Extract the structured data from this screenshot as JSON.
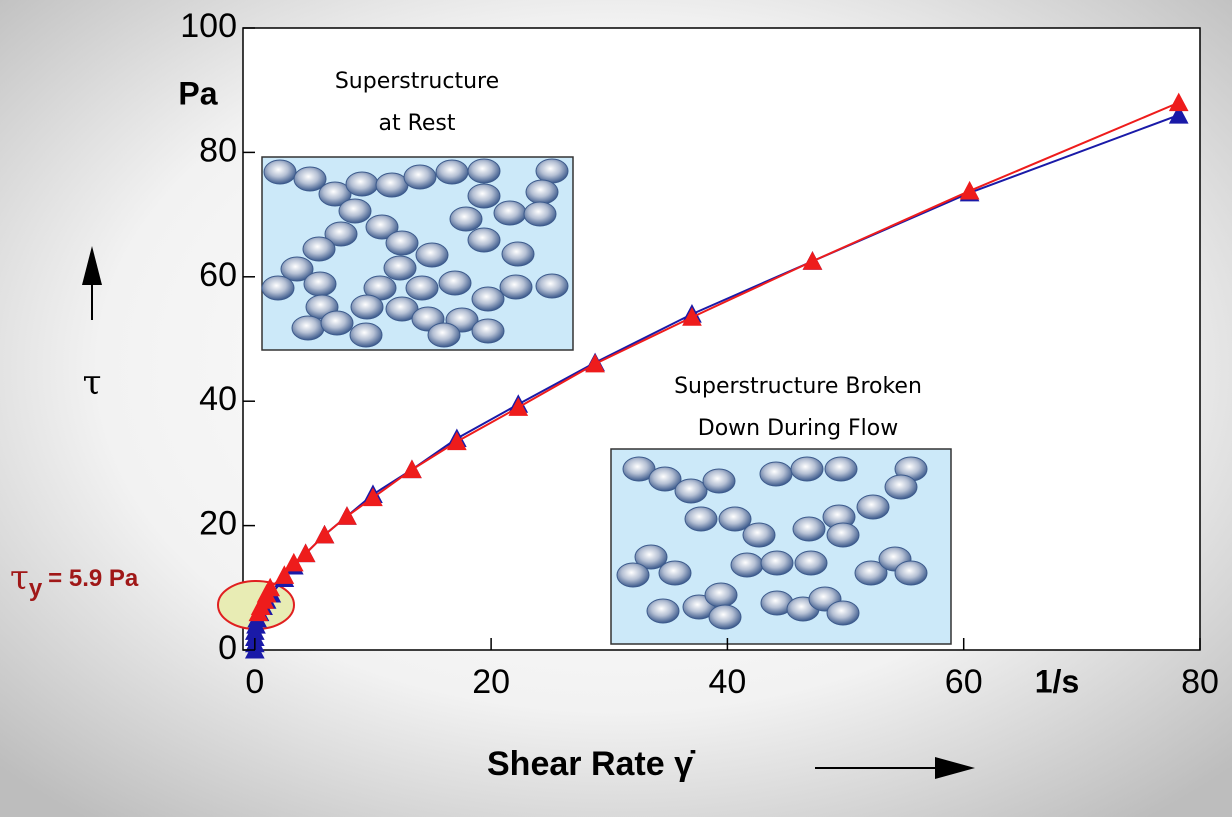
{
  "chart_data": {
    "type": "line",
    "y_label": "τ",
    "y_unit": "Pa",
    "x_label": "Shear Rate γ̇",
    "x_unit": "1/s",
    "yield_label": {
      "symbol": "τ",
      "subscript": "y",
      "text": "= 5.9 Pa"
    },
    "inset_rest": [
      "Superstructure",
      "at Rest"
    ],
    "inset_flow": [
      "Superstructure Broken",
      "Down During Flow"
    ],
    "xlim": [
      -1,
      80
    ],
    "ylim": [
      0,
      100
    ],
    "xticks": [
      0,
      20,
      40,
      60,
      80
    ],
    "yticks": [
      0,
      20,
      40,
      60,
      80,
      100
    ],
    "series": [
      {
        "color": "#1a1aa8",
        "x": [
          0,
          0,
          0,
          0,
          0.1,
          0.2,
          0.4,
          0.7,
          1.0,
          1.4,
          2.5,
          3.3,
          4.3,
          5.9,
          7.8,
          10,
          13.3,
          17.1,
          22.3,
          28.8,
          37,
          47.2,
          60.5,
          78.2
        ],
        "values": [
          0,
          1,
          2,
          3,
          4,
          5,
          6,
          7,
          8,
          9,
          11.5,
          13.5,
          15.5,
          18.5,
          21.5,
          25,
          29,
          34,
          39.5,
          46.2,
          54,
          62.5,
          73.5,
          86
        ]
      },
      {
        "color": "#ee1c1c",
        "x": [
          0.3,
          0.5,
          0.8,
          1.0,
          1.3,
          2.5,
          3.3,
          4.3,
          5.9,
          7.8,
          10,
          13.3,
          17.1,
          22.3,
          28.8,
          37,
          47.2,
          60.5,
          78.2
        ],
        "values": [
          6,
          7,
          8,
          9,
          10,
          12,
          14,
          15.5,
          18.5,
          21.5,
          24.5,
          29,
          33.5,
          39,
          46,
          53.5,
          62.5,
          73.8,
          88
        ]
      }
    ]
  }
}
